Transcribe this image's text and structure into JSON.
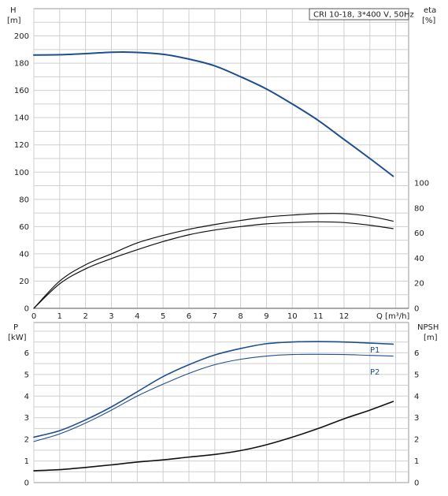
{
  "chart_data": [
    {
      "type": "line",
      "legend": "CRI 10-18, 3*400 V, 50Hz",
      "xlabel": "Q [m³/h]",
      "ylabel_left": "H",
      "ylabel_left_unit": "[m]",
      "ylabel_right": "eta",
      "ylabel_right_unit": "[%]",
      "xlim": [
        0,
        14.5
      ],
      "ylim_left": [
        0,
        220
      ],
      "ylim_right": [
        0,
        100
      ],
      "x_ticks": [
        "0",
        "1",
        "2",
        "3",
        "4",
        "5",
        "6",
        "7",
        "8",
        "9",
        "10",
        "11",
        "12"
      ],
      "y_left_ticks": [
        "0",
        "20",
        "40",
        "60",
        "80",
        "100",
        "120",
        "140",
        "160",
        "180",
        "200"
      ],
      "y_right_ticks": [
        "0",
        "20",
        "40",
        "60",
        "80",
        "100"
      ],
      "grid": true,
      "series": [
        {
          "axis": "left",
          "color": "#1f4e8c",
          "x": [
            0,
            1,
            2,
            3,
            3.8,
            5,
            6,
            7,
            8,
            9,
            10,
            11,
            12,
            13,
            13.9
          ],
          "values": [
            186,
            186.2,
            187,
            188,
            188,
            186.5,
            183,
            178,
            170,
            161,
            150,
            138,
            124,
            110,
            97
          ]
        },
        {
          "axis": "left",
          "color": "#111111",
          "x": [
            0,
            1,
            2,
            3,
            4,
            5,
            6,
            7,
            8,
            9,
            10,
            11,
            12,
            13,
            13.9
          ],
          "values": [
            0,
            20,
            32,
            40,
            48,
            53.5,
            58,
            61.5,
            64.5,
            67,
            68.5,
            69.5,
            69.5,
            67.5,
            64
          ]
        },
        {
          "axis": "left",
          "color": "#111111",
          "x": [
            0,
            1,
            2,
            3,
            4,
            5,
            6,
            7,
            8,
            9,
            10,
            11,
            12,
            13,
            13.9
          ],
          "values": [
            0,
            18,
            29,
            36.5,
            43,
            49,
            54,
            57.5,
            60,
            62,
            63,
            63.5,
            63,
            61,
            58.5
          ]
        }
      ]
    },
    {
      "type": "line",
      "xlim": [
        0,
        14.5
      ],
      "ylim_left": [
        0,
        7.4
      ],
      "ylim_right": [
        0,
        7.4
      ],
      "ylabel_left": "P",
      "ylabel_left_unit": "[kW]",
      "ylabel_right": "NPSH",
      "ylabel_right_unit": "[m]",
      "y_left_ticks": [
        "0",
        "1",
        "2",
        "3",
        "4",
        "5",
        "6"
      ],
      "y_right_ticks": [
        "0",
        "1",
        "2",
        "3",
        "4",
        "5",
        "6"
      ],
      "grid": true,
      "series": [
        {
          "name": "P1",
          "axis": "left",
          "color": "#1f4e8c",
          "x": [
            0,
            1,
            2,
            3,
            4,
            5,
            6,
            7,
            8,
            9,
            10,
            11,
            12,
            13,
            13.9
          ],
          "values": [
            2.1,
            2.4,
            2.9,
            3.5,
            4.2,
            4.9,
            5.45,
            5.9,
            6.2,
            6.42,
            6.5,
            6.52,
            6.5,
            6.45,
            6.4
          ]
        },
        {
          "name": "P2",
          "axis": "left",
          "color": "#1f4e8c",
          "x": [
            0,
            1,
            2,
            3,
            4,
            5,
            6,
            7,
            8,
            9,
            10,
            11,
            12,
            13,
            13.9
          ],
          "values": [
            1.9,
            2.25,
            2.75,
            3.35,
            4.0,
            4.55,
            5.05,
            5.45,
            5.7,
            5.85,
            5.92,
            5.93,
            5.92,
            5.88,
            5.85
          ]
        },
        {
          "axis": "right",
          "color": "#111111",
          "x": [
            0,
            1,
            2,
            3,
            4,
            5,
            6,
            7,
            8,
            9,
            10,
            11,
            12,
            13,
            13.9
          ],
          "values": [
            0.55,
            0.6,
            0.7,
            0.82,
            0.95,
            1.05,
            1.18,
            1.3,
            1.48,
            1.75,
            2.1,
            2.5,
            2.95,
            3.35,
            3.75
          ]
        }
      ]
    }
  ]
}
